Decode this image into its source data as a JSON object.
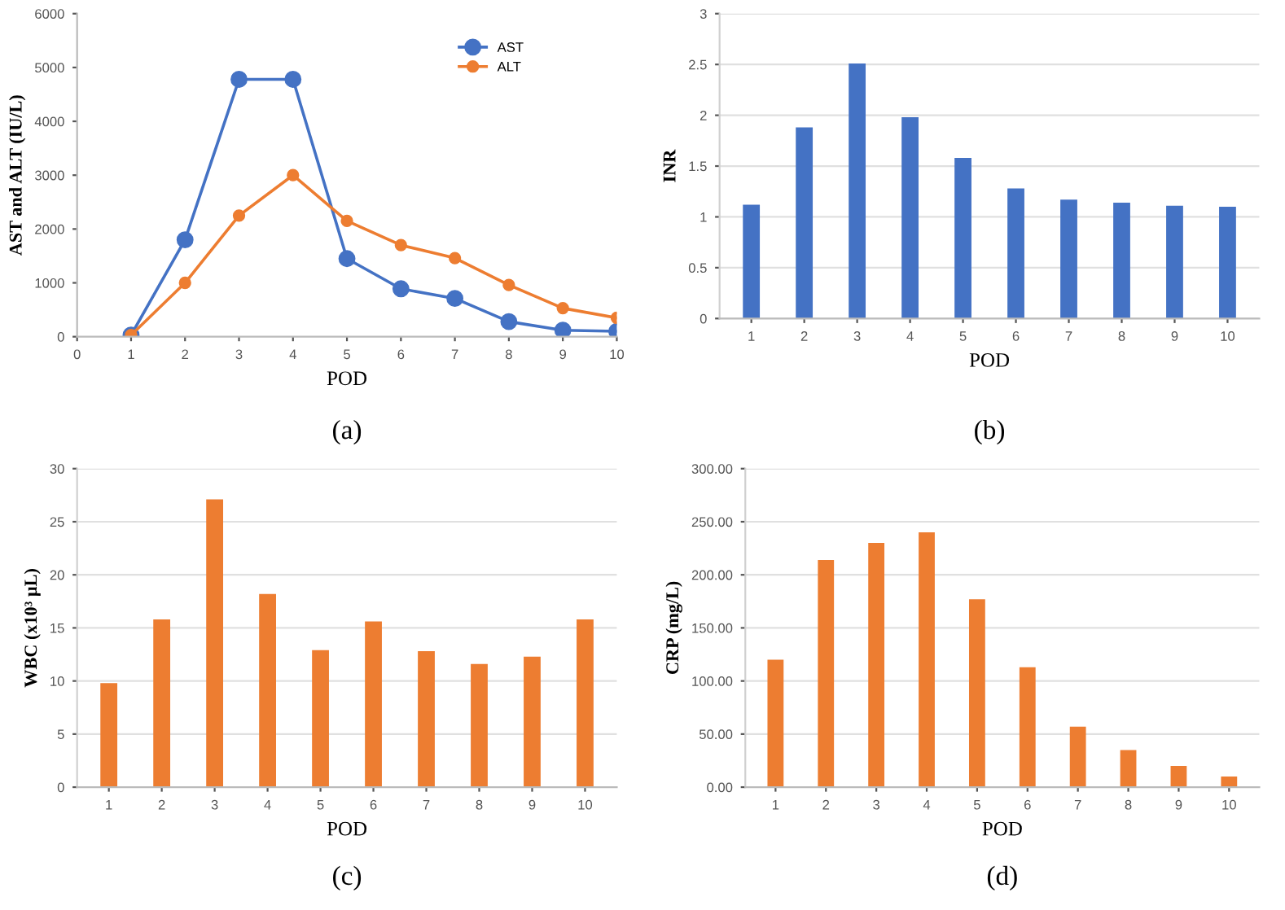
{
  "chart_data": [
    {
      "type": "line",
      "xlabel": "POD",
      "ylabel": "AST and ALT (IU/L)",
      "annotations": [
        "(a)"
      ],
      "x": [
        1,
        2,
        3,
        4,
        5,
        6,
        7,
        8,
        9,
        10
      ],
      "xlim": [
        0,
        10
      ],
      "xticks": [
        0,
        1,
        2,
        3,
        4,
        5,
        6,
        7,
        8,
        9,
        10
      ],
      "ylim": [
        0,
        6000
      ],
      "yticks": [
        0,
        1000,
        2000,
        3000,
        4000,
        5000,
        6000
      ],
      "marker": "circle",
      "legend": "top right",
      "grid": false,
      "series": [
        {
          "name": "AST",
          "color": "#4472c4",
          "values": [
            30,
            1800,
            4780,
            4780,
            1450,
            890,
            710,
            280,
            120,
            100
          ]
        },
        {
          "name": "ALT",
          "color": "#ed7d31",
          "values": [
            30,
            1000,
            2250,
            3000,
            2150,
            1700,
            1460,
            960,
            530,
            350
          ]
        }
      ]
    },
    {
      "type": "bar",
      "xlabel": "POD",
      "ylabel": "INR",
      "annotations": [
        "(b)"
      ],
      "categories": [
        "1",
        "2",
        "3",
        "4",
        "5",
        "6",
        "7",
        "8",
        "9",
        "10"
      ],
      "ylim": [
        0,
        3
      ],
      "yticks": [
        0,
        0.5,
        1,
        1.5,
        2,
        2.5,
        3
      ],
      "grid": "y",
      "color": "#4472c4",
      "values": [
        1.12,
        1.88,
        2.51,
        1.98,
        1.58,
        1.28,
        1.17,
        1.14,
        1.11,
        1.1
      ]
    },
    {
      "type": "bar",
      "xlabel": "POD",
      "ylabel": "WBC (x10³ µL)",
      "annotations": [
        "(c)"
      ],
      "categories": [
        "1",
        "2",
        "3",
        "4",
        "5",
        "6",
        "7",
        "8",
        "9",
        "10"
      ],
      "ylim": [
        0,
        30
      ],
      "yticks": [
        0,
        5,
        10,
        15,
        20,
        25,
        30
      ],
      "grid": "y",
      "color": "#ed7d31",
      "values": [
        9.8,
        15.8,
        27.1,
        18.2,
        12.9,
        15.6,
        12.8,
        11.6,
        12.3,
        15.8
      ]
    },
    {
      "type": "bar",
      "xlabel": "POD",
      "ylabel": "CRP (mg/L)",
      "annotations": [
        "(d)"
      ],
      "categories": [
        "1",
        "2",
        "3",
        "4",
        "5",
        "6",
        "7",
        "8",
        "9",
        "10"
      ],
      "ylim": [
        0,
        300
      ],
      "yticks": [
        {
          "value": 0,
          "label": "0.00"
        },
        {
          "value": 50,
          "label": "50.00"
        },
        {
          "value": 100,
          "label": "100.00"
        },
        {
          "value": 150,
          "label": "150.00"
        },
        {
          "value": 200,
          "label": "200.00"
        },
        {
          "value": 250,
          "label": "250.00"
        },
        {
          "value": 300,
          "label": "300.00"
        }
      ],
      "grid": "y",
      "color": "#ed7d31",
      "values": [
        120,
        214,
        230,
        240,
        177,
        113,
        57,
        35,
        20,
        10
      ]
    }
  ]
}
